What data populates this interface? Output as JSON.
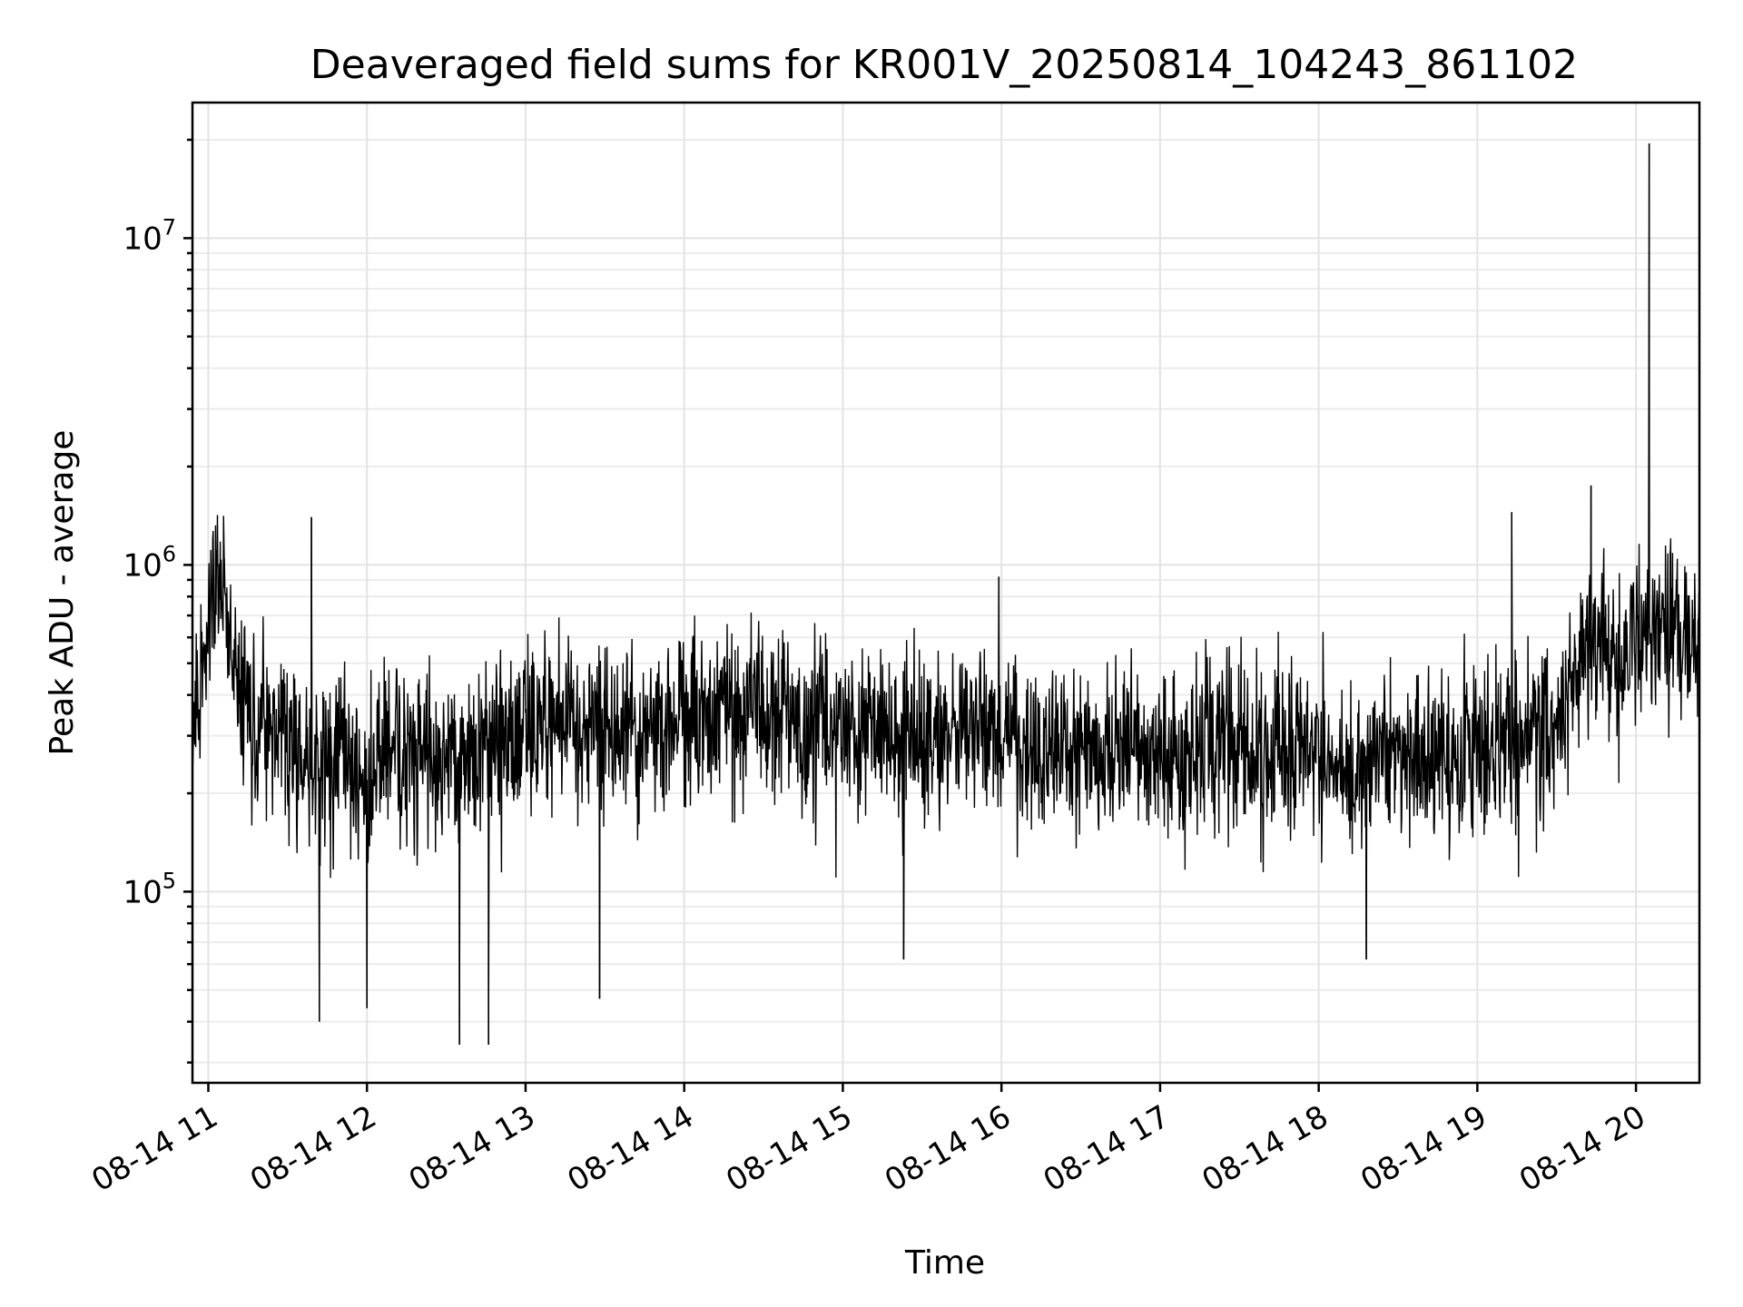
{
  "chart_data": {
    "type": "line",
    "title": "Deaveraged field sums for KR001V_20250814_104243_861102",
    "xlabel": "Time",
    "ylabel": "Peak ADU - average",
    "y_scale": "log",
    "ylim": [
      26000,
      26000000
    ],
    "xlim": [
      "2025-08-14 10:54",
      "2025-08-14 20:24"
    ],
    "x_ticks": [
      "08-14 11",
      "08-14 12",
      "08-14 13",
      "08-14 14",
      "08-14 15",
      "08-14 16",
      "08-14 17",
      "08-14 18",
      "08-14 19",
      "08-14 20"
    ],
    "y_ticks": [
      {
        "base": "10",
        "exp": "5",
        "value": 100000
      },
      {
        "base": "10",
        "exp": "6",
        "value": 1000000
      },
      {
        "base": "10",
        "exp": "7",
        "value": 10000000
      }
    ],
    "grid": true,
    "line_color": "#000000",
    "series": [
      {
        "x": [
          "2025-08-14 10:54",
          "2025-08-14 11:00",
          "2025-08-14 11:06",
          "2025-08-14 11:12",
          "2025-08-14 11:18",
          "2025-08-14 11:24",
          "2025-08-14 11:30",
          "2025-08-14 11:36",
          "2025-08-14 11:42",
          "2025-08-14 11:48",
          "2025-08-14 11:54",
          "2025-08-14 12:00",
          "2025-08-14 12:06",
          "2025-08-14 12:12",
          "2025-08-14 12:18",
          "2025-08-14 12:24",
          "2025-08-14 12:30",
          "2025-08-14 12:36",
          "2025-08-14 12:42",
          "2025-08-14 12:48",
          "2025-08-14 12:54",
          "2025-08-14 13:00",
          "2025-08-14 13:06",
          "2025-08-14 13:12",
          "2025-08-14 13:18",
          "2025-08-14 13:24",
          "2025-08-14 13:30",
          "2025-08-14 13:36",
          "2025-08-14 13:42",
          "2025-08-14 13:48",
          "2025-08-14 13:54",
          "2025-08-14 14:00",
          "2025-08-14 14:06",
          "2025-08-14 14:12",
          "2025-08-14 14:18",
          "2025-08-14 14:24",
          "2025-08-14 14:30",
          "2025-08-14 14:36",
          "2025-08-14 14:42",
          "2025-08-14 14:48",
          "2025-08-14 14:54",
          "2025-08-14 15:00",
          "2025-08-14 15:06",
          "2025-08-14 15:12",
          "2025-08-14 15:18",
          "2025-08-14 15:24",
          "2025-08-14 15:30",
          "2025-08-14 15:36",
          "2025-08-14 15:42",
          "2025-08-14 15:48",
          "2025-08-14 15:54",
          "2025-08-14 16:00",
          "2025-08-14 16:06",
          "2025-08-14 16:12",
          "2025-08-14 16:18",
          "2025-08-14 16:24",
          "2025-08-14 16:30",
          "2025-08-14 16:36",
          "2025-08-14 16:42",
          "2025-08-14 16:48",
          "2025-08-14 16:54",
          "2025-08-14 17:00",
          "2025-08-14 17:06",
          "2025-08-14 17:12",
          "2025-08-14 17:18",
          "2025-08-14 17:24",
          "2025-08-14 17:30",
          "2025-08-14 17:36",
          "2025-08-14 17:42",
          "2025-08-14 17:48",
          "2025-08-14 17:54",
          "2025-08-14 18:00",
          "2025-08-14 18:06",
          "2025-08-14 18:12",
          "2025-08-14 18:18",
          "2025-08-14 18:24",
          "2025-08-14 18:30",
          "2025-08-14 18:36",
          "2025-08-14 18:42",
          "2025-08-14 18:48",
          "2025-08-14 18:54",
          "2025-08-14 19:00",
          "2025-08-14 19:06",
          "2025-08-14 19:12",
          "2025-08-14 19:18",
          "2025-08-14 19:24",
          "2025-08-14 19:30",
          "2025-08-14 19:36",
          "2025-08-14 19:42",
          "2025-08-14 19:48",
          "2025-08-14 19:54",
          "2025-08-14 20:00",
          "2025-08-14 20:06",
          "2025-08-14 20:12",
          "2025-08-14 20:18",
          "2025-08-14 20:24"
        ],
        "y": [
          300000,
          650000,
          850000,
          400000,
          300000,
          350000,
          280000,
          250000,
          220000,
          260000,
          250000,
          220000,
          280000,
          260000,
          270000,
          250000,
          260000,
          240000,
          270000,
          250000,
          280000,
          300000,
          320000,
          330000,
          310000,
          300000,
          320000,
          330000,
          300000,
          310000,
          330000,
          320000,
          330000,
          350000,
          340000,
          380000,
          340000,
          330000,
          320000,
          310000,
          320000,
          330000,
          320000,
          310000,
          300000,
          290000,
          310000,
          300000,
          300000,
          310000,
          330000,
          300000,
          290000,
          280000,
          270000,
          260000,
          270000,
          280000,
          270000,
          280000,
          260000,
          280000,
          270000,
          260000,
          290000,
          300000,
          280000,
          270000,
          260000,
          280000,
          270000,
          260000,
          250000,
          240000,
          260000,
          270000,
          280000,
          260000,
          270000,
          250000,
          260000,
          280000,
          270000,
          260000,
          280000,
          300000,
          320000,
          450000,
          600000,
          550000,
          500000,
          600000,
          650000,
          620000,
          600000,
          600000
        ]
      }
    ],
    "peaks_high": [
      {
        "x": "2025-08-14 11:06",
        "y": 1050000
      },
      {
        "x": "2025-08-14 11:39",
        "y": 1400000
      },
      {
        "x": "2025-08-14 15:59",
        "y": 920000
      },
      {
        "x": "2025-08-14 19:13",
        "y": 1450000
      },
      {
        "x": "2025-08-14 19:43",
        "y": 1750000
      },
      {
        "x": "2025-08-14 20:05",
        "y": 19500000
      },
      {
        "x": "2025-08-14 20:13",
        "y": 1100000
      }
    ],
    "dips_low": [
      {
        "x": "2025-08-14 11:42",
        "y": 40000
      },
      {
        "x": "2025-08-14 12:00",
        "y": 44000
      },
      {
        "x": "2025-08-14 12:35",
        "y": 34000
      },
      {
        "x": "2025-08-14 12:46",
        "y": 34000
      },
      {
        "x": "2025-08-14 13:28",
        "y": 47000
      },
      {
        "x": "2025-08-14 15:23",
        "y": 62000
      },
      {
        "x": "2025-08-14 18:18",
        "y": 62000
      }
    ]
  }
}
